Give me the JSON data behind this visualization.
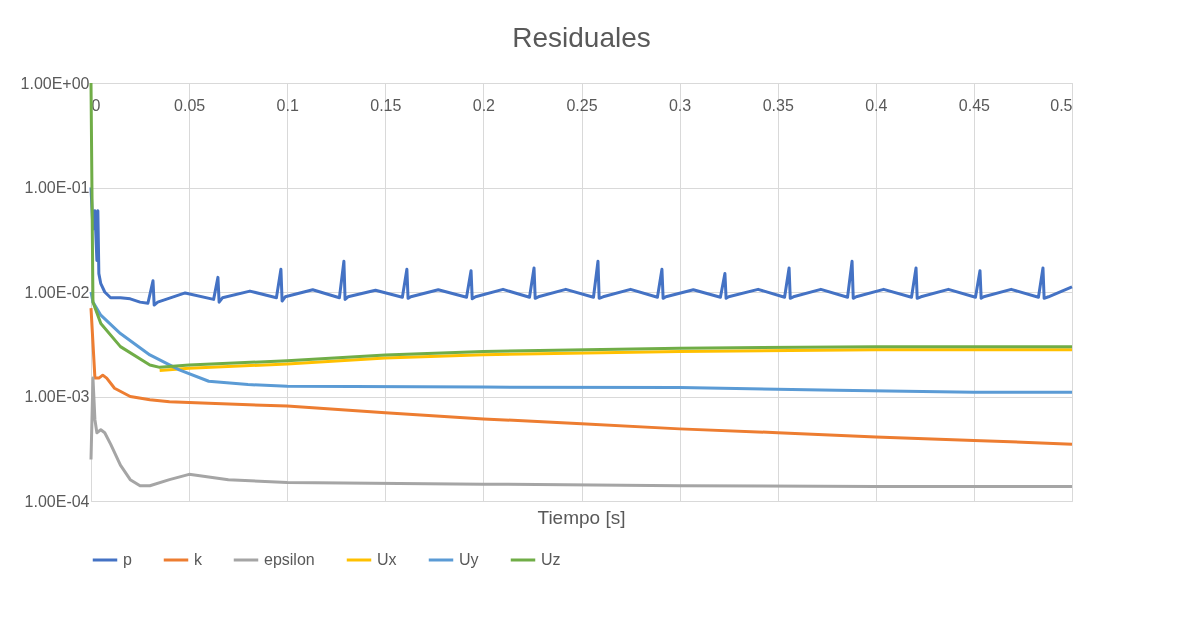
{
  "chart_data": {
    "type": "line",
    "title": "Residuales",
    "xlabel": "Tiempo [s]",
    "xlim": [
      0,
      0.5
    ],
    "xticks": [
      0,
      0.05,
      0.1,
      0.15,
      0.2,
      0.25,
      0.3,
      0.35,
      0.4,
      0.45,
      0.5
    ],
    "ylim": [
      0.0001,
      1
    ],
    "yticks": [
      {
        "value": 0.0001,
        "label": "1.00E-04"
      },
      {
        "value": 0.001,
        "label": "1.00E-03"
      },
      {
        "value": 0.01,
        "label": "1.00E-02"
      },
      {
        "value": 0.1,
        "label": "1.00E-01"
      },
      {
        "value": 1,
        "label": "1.00E+00"
      }
    ],
    "log": "y",
    "grid": true,
    "legend": "bottom",
    "series": [
      {
        "name": "p",
        "color": "#4472c4",
        "x": [
          0,
          0.001,
          0.002,
          0.003,
          0.0035,
          0.004,
          0.005,
          0.007,
          0.01,
          0.015,
          0.02,
          0.025,
          0.029,
          0.0316,
          0.0322,
          0.034,
          0.048,
          0.0625,
          0.0647,
          0.0653,
          0.067,
          0.081,
          0.0945,
          0.0968,
          0.0974,
          0.099,
          0.113,
          0.1266,
          0.1289,
          0.1295,
          0.131,
          0.145,
          0.1587,
          0.161,
          0.1616,
          0.163,
          0.177,
          0.1914,
          0.1937,
          0.1943,
          0.196,
          0.21,
          0.2235,
          0.2258,
          0.2264,
          0.228,
          0.242,
          0.2561,
          0.2584,
          0.259,
          0.261,
          0.275,
          0.2887,
          0.291,
          0.2916,
          0.293,
          0.307,
          0.3208,
          0.3231,
          0.3237,
          0.325,
          0.34,
          0.3535,
          0.3558,
          0.3564,
          0.358,
          0.372,
          0.3856,
          0.3879,
          0.3885,
          0.39,
          0.404,
          0.4182,
          0.4205,
          0.4211,
          0.423,
          0.437,
          0.4508,
          0.4531,
          0.4537,
          0.455,
          0.469,
          0.4829,
          0.4852,
          0.4858,
          0.488,
          0.5
        ],
        "values": [
          0.1,
          0.04,
          0.06,
          0.02,
          0.06,
          0.015,
          0.012,
          0.01,
          0.0088,
          0.0088,
          0.0086,
          0.008,
          0.0078,
          0.0128,
          0.0075,
          0.008,
          0.0098,
          0.0085,
          0.0138,
          0.008,
          0.0088,
          0.0102,
          0.0088,
          0.0165,
          0.0082,
          0.009,
          0.0105,
          0.0088,
          0.0197,
          0.0085,
          0.009,
          0.0104,
          0.0089,
          0.0165,
          0.0087,
          0.009,
          0.0105,
          0.0089,
          0.016,
          0.0086,
          0.009,
          0.0106,
          0.0089,
          0.017,
          0.0087,
          0.009,
          0.0106,
          0.0089,
          0.0197,
          0.0087,
          0.009,
          0.0106,
          0.0089,
          0.0165,
          0.0087,
          0.009,
          0.0105,
          0.0089,
          0.015,
          0.0087,
          0.009,
          0.0106,
          0.0089,
          0.017,
          0.0087,
          0.009,
          0.0106,
          0.0089,
          0.0197,
          0.0087,
          0.009,
          0.0106,
          0.0089,
          0.017,
          0.0087,
          0.009,
          0.0106,
          0.0089,
          0.016,
          0.0087,
          0.009,
          0.0106,
          0.0089,
          0.017,
          0.0087,
          0.009,
          0.0112
        ]
      },
      {
        "name": "k",
        "color": "#ed7d31",
        "x": [
          0,
          0.002,
          0.004,
          0.006,
          0.008,
          0.012,
          0.02,
          0.03,
          0.04,
          0.06,
          0.1,
          0.15,
          0.2,
          0.25,
          0.3,
          0.35,
          0.4,
          0.45,
          0.5
        ],
        "values": [
          0.007,
          0.0015,
          0.0015,
          0.0016,
          0.0015,
          0.0012,
          0.001,
          0.00093,
          0.00089,
          0.00086,
          0.00081,
          0.0007,
          0.00061,
          0.00055,
          0.00049,
          0.00045,
          0.00041,
          0.00038,
          0.00035
        ]
      },
      {
        "name": "epsilon",
        "color": "#a5a5a5",
        "x": [
          0,
          0.001,
          0.002,
          0.003,
          0.005,
          0.007,
          0.01,
          0.015,
          0.02,
          0.025,
          0.03,
          0.04,
          0.05,
          0.06,
          0.07,
          0.1,
          0.2,
          0.3,
          0.4,
          0.5
        ],
        "values": [
          0.00025,
          0.0015,
          0.0006,
          0.00045,
          0.00048,
          0.00045,
          0.00035,
          0.00022,
          0.00016,
          0.00014,
          0.00014,
          0.00016,
          0.00018,
          0.00017,
          0.00016,
          0.00015,
          0.000145,
          0.00014,
          0.000138,
          0.000138
        ]
      },
      {
        "name": "Ux",
        "color": "#ffc000",
        "x": [
          0.035,
          0.05,
          0.1,
          0.15,
          0.2,
          0.3,
          0.4,
          0.5
        ],
        "values": [
          0.00177,
          0.00186,
          0.00205,
          0.00233,
          0.00251,
          0.0027,
          0.0028,
          0.0028
        ]
      },
      {
        "name": "Uy",
        "color": "#5b9bd5",
        "x": [
          0,
          0.001,
          0.005,
          0.015,
          0.03,
          0.045,
          0.06,
          0.08,
          0.1,
          0.2,
          0.3,
          0.38,
          0.45,
          0.5
        ],
        "values": [
          0.01,
          0.008,
          0.006,
          0.004,
          0.0025,
          0.0018,
          0.0014,
          0.0013,
          0.00125,
          0.00123,
          0.00122,
          0.00115,
          0.0011,
          0.0011
        ]
      },
      {
        "name": "Uz",
        "color": "#70ad47",
        "x": [
          0,
          0.001,
          0.005,
          0.015,
          0.03,
          0.035,
          0.05,
          0.1,
          0.15,
          0.2,
          0.3,
          0.4,
          0.5
        ],
        "values": [
          1,
          0.008,
          0.005,
          0.003,
          0.002,
          0.0019,
          0.002,
          0.0022,
          0.0025,
          0.0027,
          0.0029,
          0.003,
          0.003
        ]
      }
    ]
  }
}
